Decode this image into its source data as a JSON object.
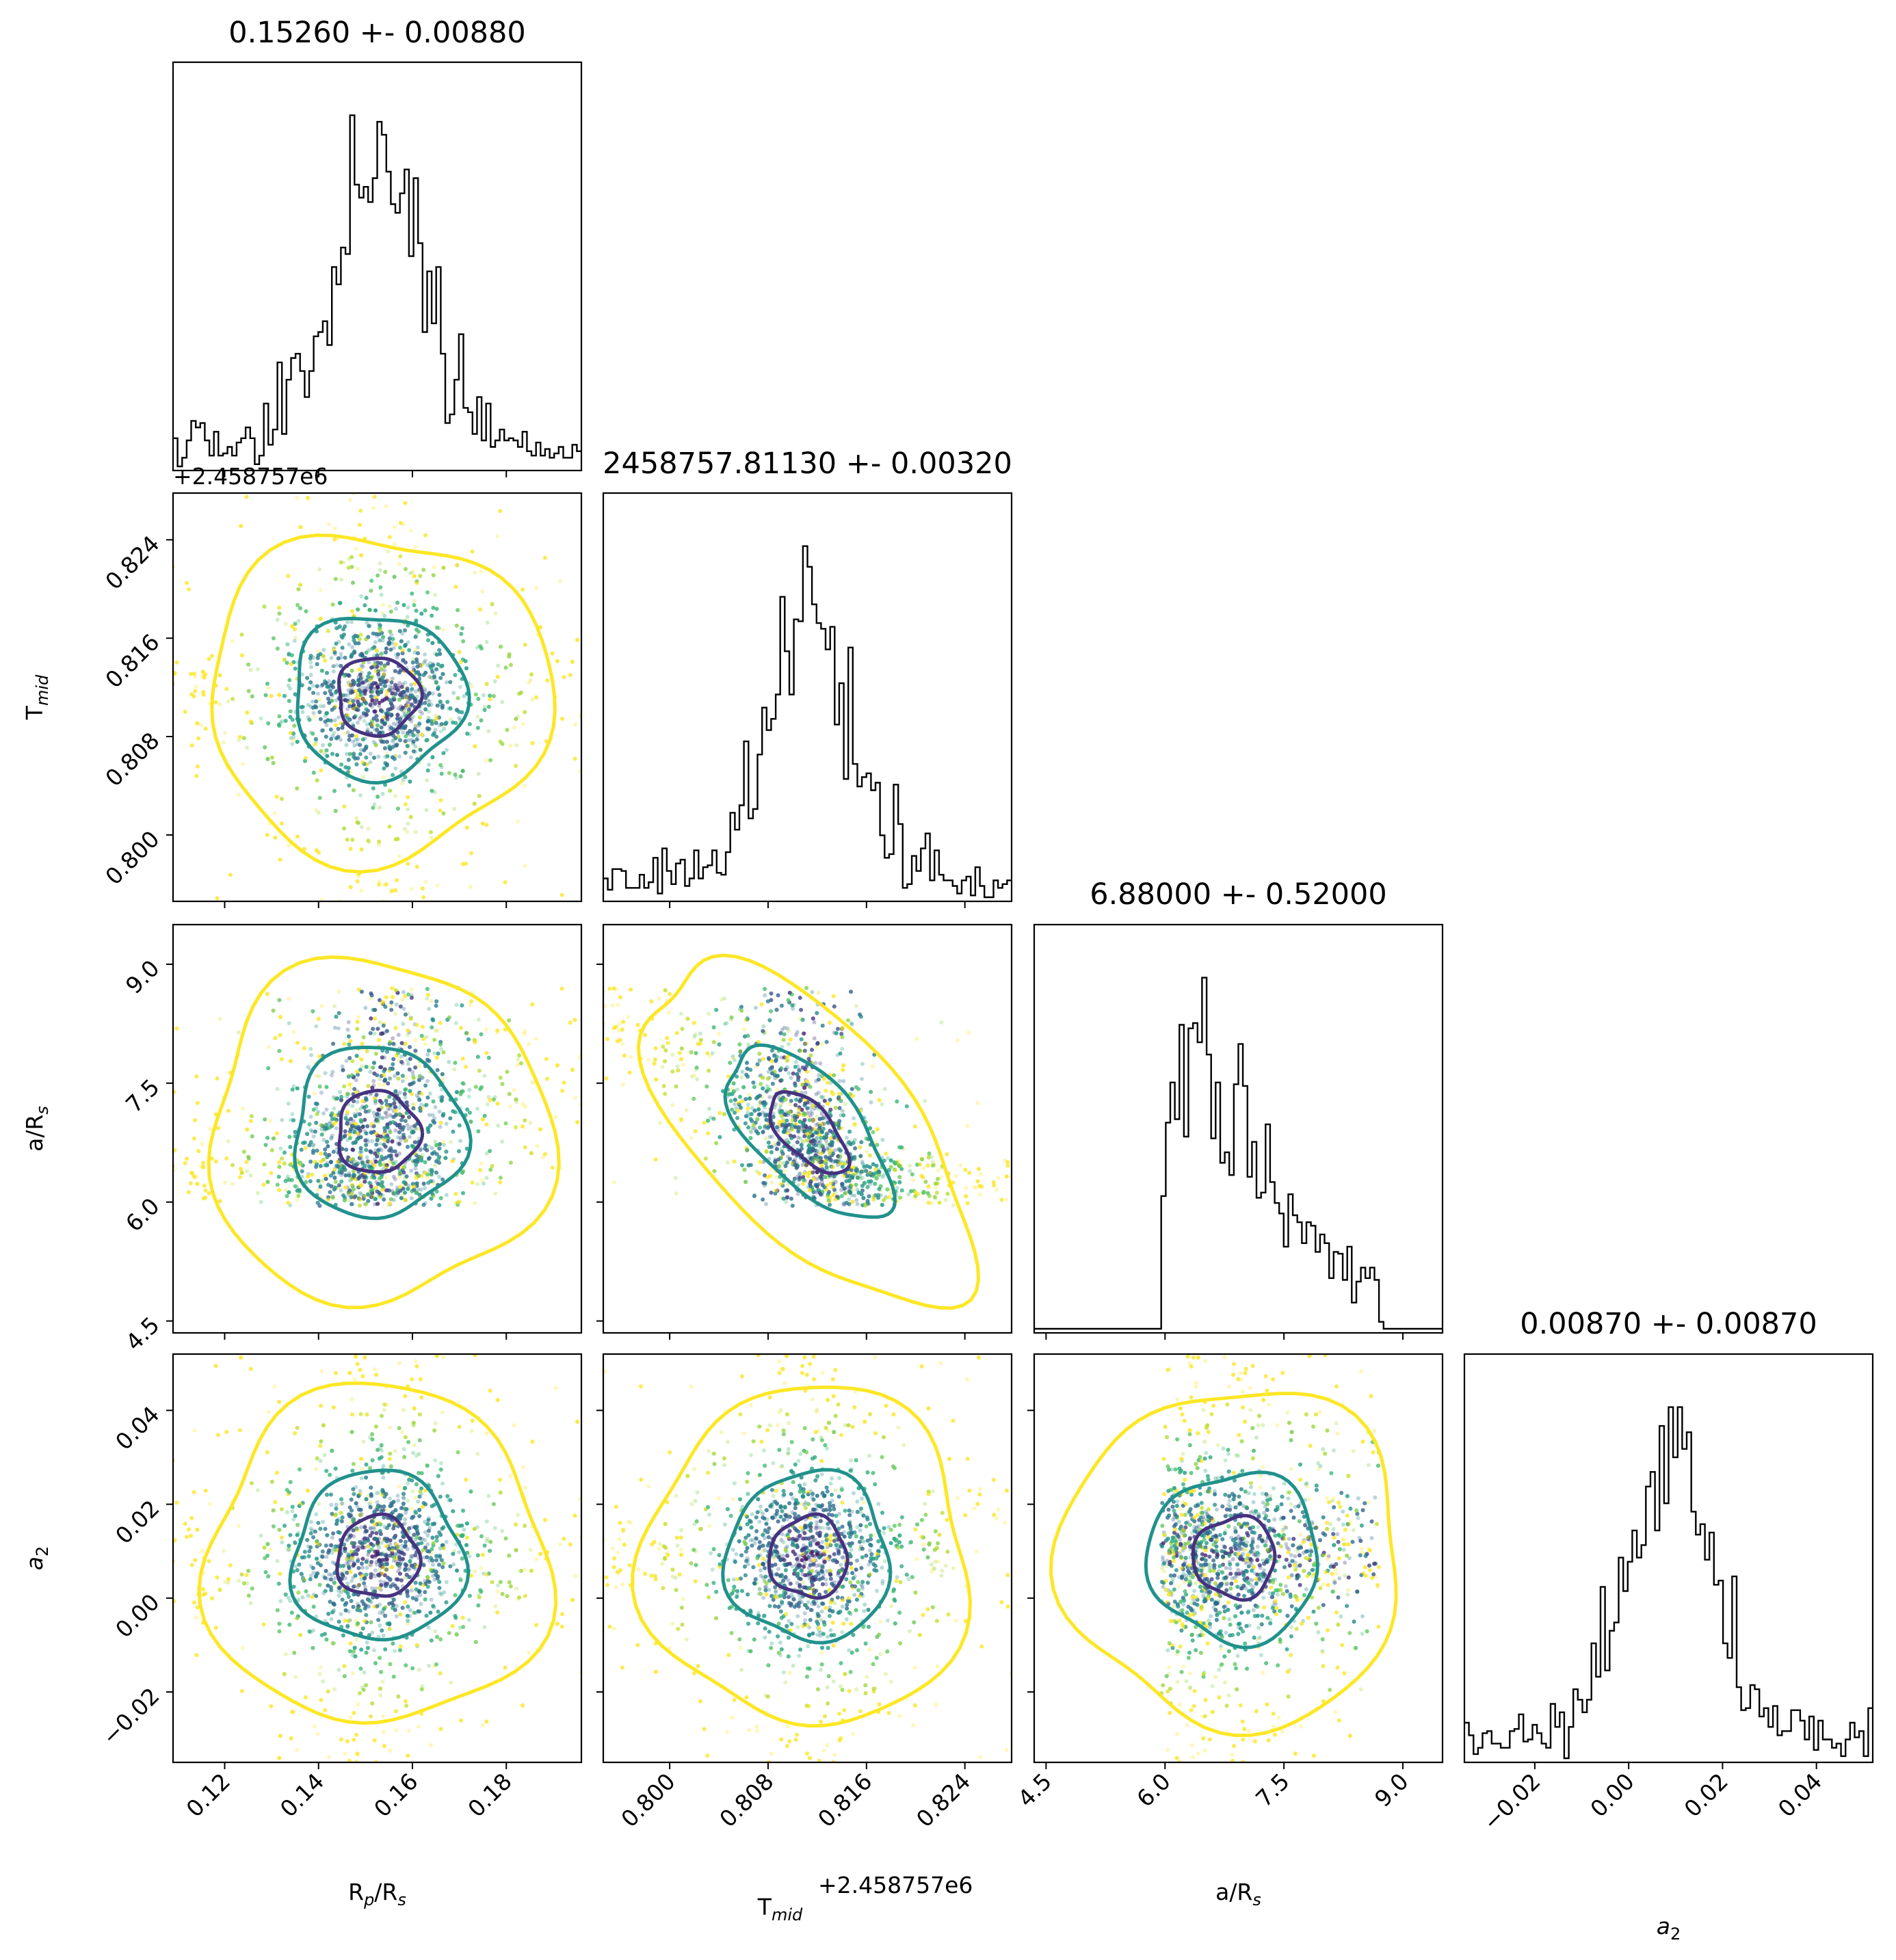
{
  "chart_data": {
    "type": "scatter",
    "subtype": "corner-plot",
    "parameters": [
      {
        "key": "rp_rs",
        "label_main": "R",
        "label_sub": "p",
        "label_tail": "/R",
        "label_tail_sub": "s",
        "title": "0.15260 +- 0.00880",
        "median": 0.1526,
        "sigma": 0.0088,
        "range": [
          0.109,
          0.196
        ],
        "ticks": [
          "0.12",
          "0.14",
          "0.16",
          "0.18"
        ],
        "tick_values": [
          0.12,
          0.14,
          0.16,
          0.18
        ]
      },
      {
        "key": "t_mid",
        "label_main": "T",
        "label_sub": "mid",
        "label_tail": "",
        "label_tail_sub": "",
        "title": "2458757.81130 +- 0.00320",
        "median": 0.8113,
        "sigma": 0.0032,
        "range": [
          0.7946,
          0.8278
        ],
        "ticks": [
          "0.800",
          "0.808",
          "0.816",
          "0.824"
        ],
        "tick_values": [
          0.8,
          0.808,
          0.816,
          0.824
        ],
        "offset": "+2.458757e6"
      },
      {
        "key": "a_rs",
        "label_main": "a/R",
        "label_sub": "s",
        "label_tail": "",
        "label_tail_sub": "",
        "title": "6.88000 +- 0.52000",
        "median": 6.88,
        "sigma": 0.52,
        "range": [
          4.35,
          9.5
        ],
        "ticks": [
          "4.5",
          "6.0",
          "7.5",
          "9.0"
        ],
        "tick_values": [
          4.5,
          6.0,
          7.5,
          9.0
        ],
        "support": [
          5.95,
          8.7
        ]
      },
      {
        "key": "a2",
        "label_main": "a",
        "label_sub": "2",
        "label_tail": "",
        "label_tail_sub": "",
        "title": "0.00870 +- 0.00870",
        "median": 0.0087,
        "sigma": 0.0087,
        "range": [
          -0.035,
          0.052
        ],
        "ticks": [
          "−0.02",
          "0.00",
          "0.02",
          "0.04"
        ],
        "tick_values": [
          -0.02,
          0.0,
          0.02,
          0.04
        ]
      }
    ],
    "contour_levels": [
      "1σ",
      "2σ",
      "3σ"
    ],
    "colors": {
      "contour_inner": "#46327e",
      "contour_middle": "#21918c",
      "contour_outer": "#fde725",
      "histogram": "#000000",
      "viridis": [
        "#440154",
        "#46327e",
        "#365c8d",
        "#277f8e",
        "#1fa187",
        "#4ac16d",
        "#a0da39",
        "#fde725"
      ]
    },
    "grid": false,
    "legend": "none"
  }
}
